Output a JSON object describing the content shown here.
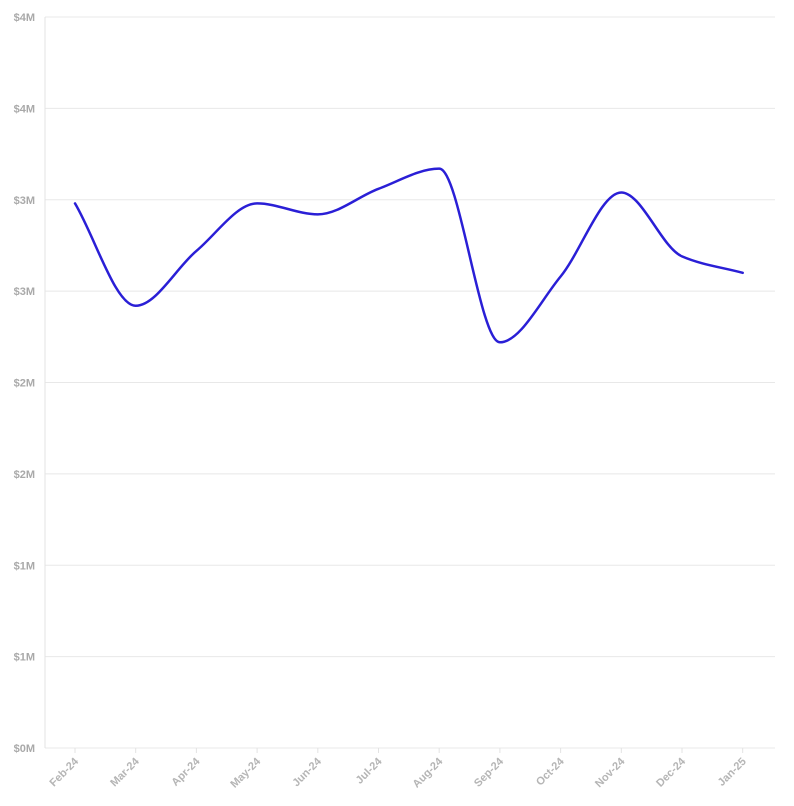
{
  "chart_data": {
    "type": "line",
    "title": "",
    "xlabel": "",
    "ylabel": "",
    "categories": [
      "Feb-24",
      "Mar-24",
      "Apr-24",
      "May-24",
      "Jun-24",
      "Jul-24",
      "Aug-24",
      "Sep-24",
      "Oct-24",
      "Nov-24",
      "Dec-24",
      "Jan-25"
    ],
    "series": [
      {
        "color": "#2a1fd6",
        "values": [
          2980000,
          2420000,
          2720000,
          2980000,
          2920000,
          3060000,
          3170000,
          2220000,
          2580000,
          3040000,
          2690000,
          2600000
        ]
      }
    ],
    "ylim": [
      0,
      4000000
    ],
    "y_ticks": [
      {
        "value": 0,
        "label": "$0M"
      },
      {
        "value": 500000,
        "label": "$1M"
      },
      {
        "value": 1000000,
        "label": "$1M"
      },
      {
        "value": 1500000,
        "label": "$2M"
      },
      {
        "value": 2000000,
        "label": "$2M"
      },
      {
        "value": 2500000,
        "label": "$3M"
      },
      {
        "value": 3000000,
        "label": "$3M"
      },
      {
        "value": 3500000,
        "label": "$4M"
      },
      {
        "value": 4000000,
        "label": "$4M"
      }
    ],
    "grid": true,
    "legend": "none"
  }
}
